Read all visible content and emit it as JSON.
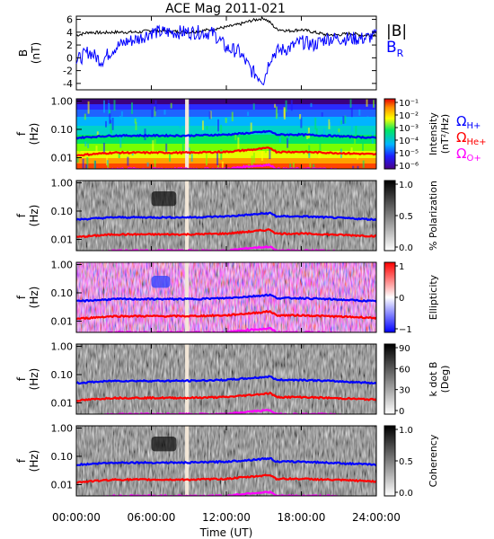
{
  "title": "ACE Mag 2011-021",
  "x_axis": {
    "label": "Time (UT)",
    "tick_labels": [
      "00:00:00",
      "06:00:00",
      "12:00:00",
      "18:00:00",
      "24:00:00"
    ],
    "range_hours": [
      0,
      24
    ]
  },
  "colors": {
    "He+": "#ff0000",
    "H+": "#0000ff",
    "O+": "#ff00ff",
    "B_total": "#000000",
    "B_R": "#0000ff"
  },
  "panels": {
    "b_field": {
      "ylabel": "B",
      "yunit": "(nT)",
      "legend": [
        "|B|",
        "B"
      ],
      "legend_sub": "R",
      "tick_labels": [
        "6",
        "4",
        "2",
        "0",
        "-2",
        "-4"
      ]
    },
    "spectral": [
      {
        "id": "intensity",
        "tick_labels": [
          "1.00",
          "0.10",
          "0.01"
        ],
        "cbar_label": "Intensity",
        "cbar_label2": "(nT²/Hz)",
        "cbar_ticks": [
          "10⁻¹",
          "10⁻²",
          "10⁻³",
          "10⁻⁴",
          "10⁻⁵",
          "10⁻⁶"
        ]
      },
      {
        "id": "polarization",
        "tick_labels": [
          "1.00",
          "0.10",
          "0.01"
        ],
        "cbar_label": "% Polarization",
        "cbar_ticks": [
          "1.0",
          "0.5",
          "0.0"
        ]
      },
      {
        "id": "ellipticity",
        "tick_labels": [
          "1.00",
          "0.10",
          "0.01"
        ],
        "cbar_label": "Ellipticity",
        "cbar_ticks": [
          "1",
          "0",
          "−1"
        ]
      },
      {
        "id": "kdotb",
        "tick_labels": [
          "1.00",
          "0.10",
          "0.01"
        ],
        "cbar_label": "k dot B",
        "cbar_label2": "(Deg)",
        "cbar_ticks": [
          "90",
          "60",
          "30",
          "0"
        ]
      },
      {
        "id": "coherency",
        "tick_labels": [
          "1.00",
          "0.10",
          "0.01"
        ],
        "cbar_label": "Coherency",
        "cbar_ticks": [
          "1.0",
          "0.5",
          "0.0"
        ]
      }
    ],
    "f_label": "f",
    "f_unit": "(Hz)"
  },
  "gyro_legend": [
    {
      "label": "Ω",
      "sub": "H+"
    },
    {
      "label": "Ω",
      "sub": "He+"
    },
    {
      "label": "Ω",
      "sub": "O+"
    }
  ],
  "chart_data": {
    "type": "heatmap",
    "title": "ACE Mag 2011-021",
    "xlabel": "Time (UT)",
    "x_range_hours": [
      0,
      24
    ],
    "freq_range_hz": [
      0.004,
      1.2
    ],
    "data_gap_hours": [
      8.7,
      9.0
    ],
    "b_field": {
      "ylim": [
        -5,
        6.5
      ],
      "time_hours": [
        0,
        1,
        2,
        3,
        4,
        5,
        6,
        7,
        8,
        9,
        10,
        11,
        12,
        13,
        14,
        15,
        15.5,
        16,
        17,
        18,
        19,
        20,
        21,
        22,
        23,
        24
      ],
      "B_total": [
        3.5,
        4.0,
        3.9,
        4.0,
        4.0,
        4.0,
        4.3,
        4.2,
        4.1,
        4.0,
        4.2,
        4.5,
        4.8,
        5.2,
        5.8,
        6.2,
        5.5,
        4.5,
        4.2,
        4.4,
        4.0,
        3.6,
        3.6,
        3.8,
        3.5,
        3.6
      ],
      "B_R": [
        -0.5,
        1.0,
        -0.5,
        1.5,
        2.5,
        3.0,
        4.0,
        4.0,
        4.0,
        4.0,
        4.0,
        3.8,
        1.5,
        1.0,
        -2.0,
        -3.5,
        0.0,
        1.0,
        1.5,
        2.5,
        2.0,
        3.0,
        3.0,
        3.0,
        3.0,
        3.5
      ]
    },
    "gyrofrequency_hz": {
      "time_hours": [
        0,
        3,
        6,
        9,
        12,
        14,
        15.5,
        16,
        18,
        20,
        22,
        24
      ],
      "H+": [
        0.05,
        0.06,
        0.06,
        0.06,
        0.065,
        0.075,
        0.085,
        0.065,
        0.065,
        0.06,
        0.055,
        0.05
      ],
      "He+": [
        0.012,
        0.015,
        0.015,
        0.015,
        0.016,
        0.019,
        0.022,
        0.016,
        0.016,
        0.015,
        0.014,
        0.013
      ],
      "O+": [
        0.003,
        0.004,
        0.004,
        0.004,
        0.004,
        0.005,
        0.0055,
        0.004,
        0.004,
        0.004,
        0.0035,
        0.003
      ]
    },
    "features": [
      {
        "panel": "polarization",
        "time_hours": [
          6,
          8
        ],
        "freq_hz": [
          0.15,
          0.5
        ],
        "level": "high"
      },
      {
        "panel": "ellipticity",
        "time_hours": [
          6,
          7.5
        ],
        "freq_hz": [
          0.15,
          0.4
        ],
        "level": "negative"
      },
      {
        "panel": "coherency",
        "time_hours": [
          6,
          8
        ],
        "freq_hz": [
          0.15,
          0.5
        ],
        "level": "high"
      }
    ]
  }
}
